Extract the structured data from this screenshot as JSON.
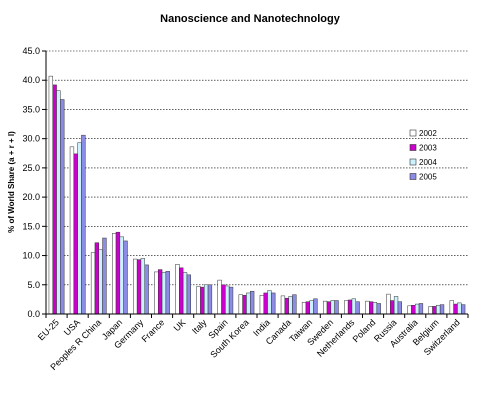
{
  "chart_data": {
    "type": "bar",
    "title": "Nanoscience and Nanotechnology",
    "xlabel": "",
    "ylabel": "% of World Share (a + r + l)",
    "ylim": [
      0,
      45
    ],
    "yticks": [
      "0.0",
      "5.0",
      "10.0",
      "15.0",
      "20.0",
      "25.0",
      "30.0",
      "35.0",
      "40.0",
      "45.0"
    ],
    "grid": "horizontal dashed",
    "legend_position": "right",
    "categories": [
      "EU-25",
      "USA",
      "Peoples R China",
      "Japan",
      "Germany",
      "France",
      "UK",
      "Italy",
      "Spain",
      "South Korea",
      "India",
      "Canada",
      "Taiwan",
      "Sweden",
      "Netherlands",
      "Poland",
      "Russia",
      "Australia",
      "Belgium",
      "Switzerland"
    ],
    "series": [
      {
        "name": "2002",
        "color": "#ffffff",
        "values": [
          40.7,
          28.6,
          10.5,
          13.8,
          9.4,
          7.2,
          8.5,
          4.7,
          5.8,
          3.3,
          3.2,
          3.1,
          2.0,
          2.2,
          2.3,
          2.2,
          3.4,
          1.4,
          1.3,
          2.3
        ]
      },
      {
        "name": "2003",
        "color": "#cc00cc",
        "values": [
          39.2,
          27.4,
          12.2,
          14.0,
          9.3,
          7.6,
          7.9,
          4.6,
          5.0,
          3.2,
          3.6,
          2.7,
          2.1,
          2.1,
          2.4,
          2.1,
          2.3,
          1.5,
          1.3,
          1.7
        ]
      },
      {
        "name": "2004",
        "color": "#ccf2ff",
        "values": [
          38.2,
          29.3,
          11.0,
          13.2,
          9.5,
          7.1,
          7.1,
          5.0,
          4.8,
          3.6,
          4.0,
          3.0,
          2.3,
          2.3,
          2.6,
          2.0,
          3.0,
          1.7,
          1.5,
          1.9
        ]
      },
      {
        "name": "2005",
        "color": "#8c8ce6",
        "values": [
          36.7,
          30.6,
          13.0,
          12.5,
          8.4,
          7.3,
          6.7,
          5.0,
          4.6,
          3.9,
          3.6,
          3.3,
          2.6,
          2.3,
          2.1,
          1.8,
          2.1,
          1.8,
          1.6,
          1.6
        ]
      }
    ]
  }
}
